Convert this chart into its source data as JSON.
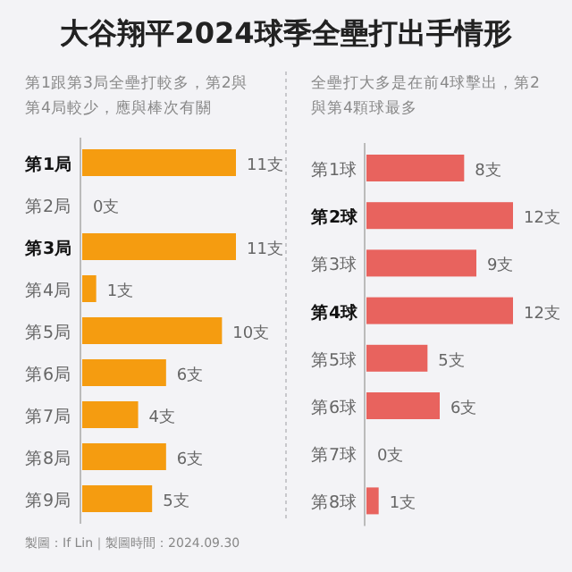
{
  "chart_data": [
    {
      "type": "bar",
      "orientation": "horizontal",
      "title": "大谷翔平2024球季全壘打出手情形",
      "subtitle": "第1跟第3局全壘打較多，第2與第4局較少，應與棒次有關",
      "categories": [
        "**第1局**",
        "第2局",
        "**第3局**",
        "第4局",
        "第5局",
        "第6局",
        "第7局",
        "第8局",
        "第9局"
      ],
      "values": [
        11,
        0,
        11,
        1,
        10,
        6,
        4,
        6,
        5
      ],
      "value_labels": [
        "11支",
        "0支",
        "11支",
        "1支",
        "10支",
        "6支",
        "4支",
        "6支",
        "5支"
      ],
      "color": "#f59c10",
      "annotations": [
        "製圖：If Lin｜製圖時間：2024.09.30"
      ]
    },
    {
      "type": "bar",
      "orientation": "horizontal",
      "subtitle": "全壘打大多是在前4球擊出，第2與第4顆球最多",
      "categories": [
        "第1球",
        "**第2球**",
        "第3球",
        "**第4球**",
        "第5球",
        "第6球",
        "第7球",
        "第8球"
      ],
      "values": [
        8,
        12,
        9,
        12,
        5,
        6,
        0,
        1
      ],
      "value_labels": [
        "8支",
        "12支",
        "9支",
        "12支",
        "5支",
        "6支",
        "0支",
        "1支"
      ],
      "color": "#e8635e"
    }
  ]
}
